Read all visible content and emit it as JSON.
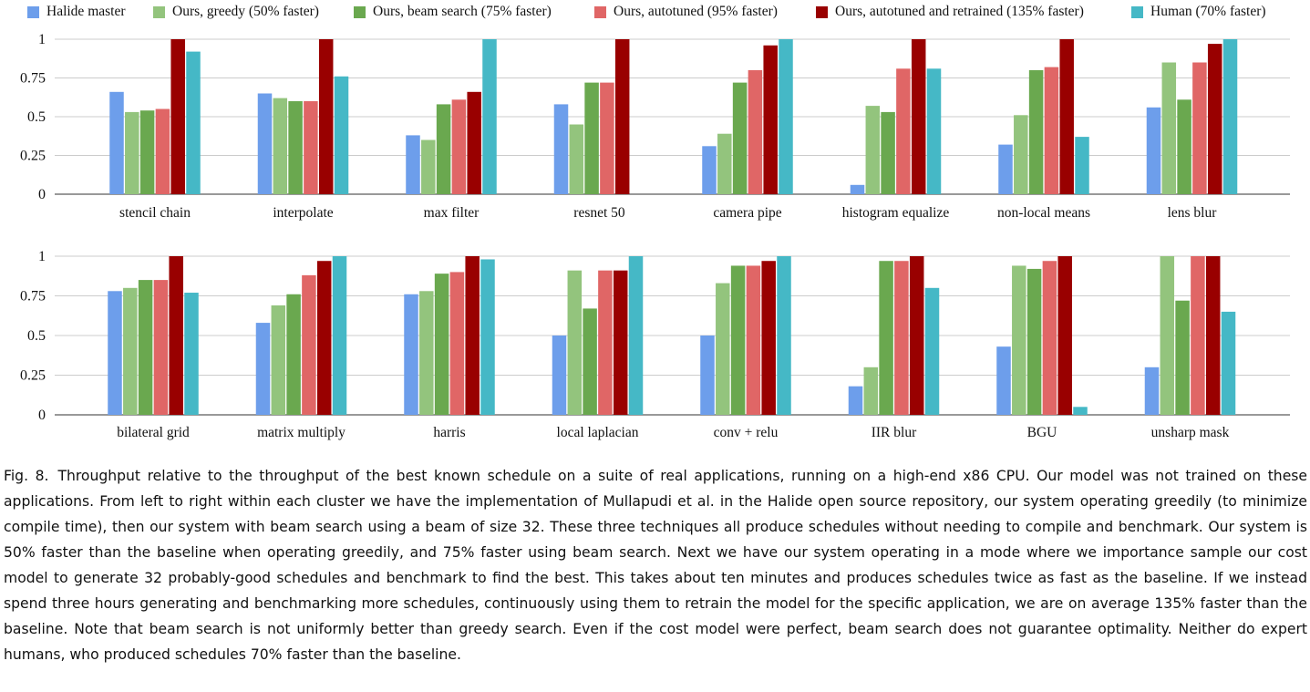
{
  "legend": {
    "items": [
      {
        "label": "Halide master",
        "color": "#6d9eeb"
      },
      {
        "label": "Ours, greedy (50% faster)",
        "color": "#93c47d"
      },
      {
        "label": "Ours, beam search (75% faster)",
        "color": "#6aa84f"
      },
      {
        "label": "Ours, autotuned (95% faster)",
        "color": "#e06666"
      },
      {
        "label": "Ours, autotuned and retrained (135% faster)",
        "color": "#990000"
      },
      {
        "label": "Human (70% faster)",
        "color": "#45b8c6"
      }
    ]
  },
  "chart_data": [
    {
      "type": "bar",
      "ylim": [
        0,
        1
      ],
      "yticks": [
        "0",
        "0.25",
        "0.5",
        "0.75",
        "1"
      ],
      "categories": [
        "stencil chain",
        "interpolate",
        "max filter",
        "resnet 50",
        "camera pipe",
        "histogram equalize",
        "non-local means",
        "lens blur"
      ],
      "series": [
        {
          "name": "Halide master",
          "values": [
            0.66,
            0.65,
            0.38,
            0.58,
            0.31,
            0.06,
            0.32,
            0.56
          ]
        },
        {
          "name": "Ours, greedy (50% faster)",
          "values": [
            0.53,
            0.62,
            0.35,
            0.45,
            0.39,
            0.57,
            0.51,
            0.85
          ]
        },
        {
          "name": "Ours, beam search (75% faster)",
          "values": [
            0.54,
            0.6,
            0.58,
            0.72,
            0.72,
            0.53,
            0.8,
            0.61
          ]
        },
        {
          "name": "Ours, autotuned (95% faster)",
          "values": [
            0.55,
            0.6,
            0.61,
            0.72,
            0.8,
            0.81,
            0.82,
            0.85
          ]
        },
        {
          "name": "Ours, autotuned and retrained (135% faster)",
          "values": [
            1.0,
            1.0,
            0.66,
            1.0,
            0.96,
            1.0,
            1.0,
            0.97
          ]
        },
        {
          "name": "Human (70% faster)",
          "values": [
            0.92,
            0.76,
            1.0,
            0,
            1.0,
            0.81,
            0.37,
            1.0
          ]
        }
      ]
    },
    {
      "type": "bar",
      "ylim": [
        0,
        1
      ],
      "yticks": [
        "0",
        "0.25",
        "0.5",
        "0.75",
        "1"
      ],
      "categories": [
        "bilateral grid",
        "matrix multiply",
        "harris",
        "local laplacian",
        "conv + relu",
        "IIR blur",
        "BGU",
        "unsharp mask"
      ],
      "series": [
        {
          "name": "Halide master",
          "values": [
            0.78,
            0.58,
            0.76,
            0.5,
            0.5,
            0.18,
            0.43,
            0.3
          ]
        },
        {
          "name": "Ours, greedy (50% faster)",
          "values": [
            0.8,
            0.69,
            0.78,
            0.91,
            0.83,
            0.3,
            0.94,
            1.0
          ]
        },
        {
          "name": "Ours, beam search (75% faster)",
          "values": [
            0.85,
            0.76,
            0.89,
            0.67,
            0.94,
            0.97,
            0.92,
            0.72
          ]
        },
        {
          "name": "Ours, autotuned (95% faster)",
          "values": [
            0.85,
            0.88,
            0.9,
            0.91,
            0.94,
            0.97,
            0.97,
            1.0
          ]
        },
        {
          "name": "Ours, autotuned and retrained (135% faster)",
          "values": [
            1.0,
            0.97,
            1.0,
            0.91,
            0.97,
            1.0,
            1.0,
            1.0
          ]
        },
        {
          "name": "Human (70% faster)",
          "values": [
            0.77,
            1.0,
            0.98,
            1.0,
            1.0,
            0.8,
            0.05,
            0.65
          ]
        }
      ]
    }
  ],
  "caption": {
    "label": "Fig. 8.",
    "text": "Throughput relative to the throughput of the best known schedule on a suite of real applications, running on a high-end x86 CPU. Our model was not trained on these applications. From left to right within each cluster we have the implementation of Mullapudi et al. in the Halide open source repository, our system operating greedily (to minimize compile time), then our system with beam search using a beam of size 32. These three techniques all produce schedules without needing to compile and benchmark. Our system is 50% faster than the baseline when operating greedily, and 75% faster using beam search. Next we have our system operating in a mode where we importance sample our cost model to generate 32 probably-good schedules and benchmark to find the best. This takes about ten minutes and produces schedules twice as fast as the baseline. If we instead spend three hours generating and benchmarking more schedules, continuously using them to retrain the model for the specific application, we are on average 135% faster than the baseline. Note that beam search is not uniformly better than greedy search. Even if the cost model were perfect, beam search does not guarantee optimality. Neither do expert humans, who produced schedules 70% faster than the baseline."
  }
}
